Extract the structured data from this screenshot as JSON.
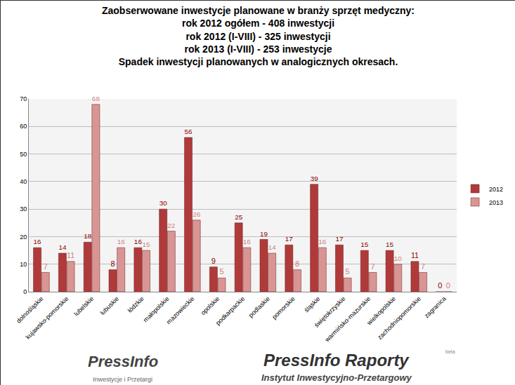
{
  "chart_data": {
    "type": "bar",
    "title": [
      "Zaobserwowane inwestycje planowane w branży sprzęt medyczny:",
      "rok 2012 ogółem - 408 inwestycji",
      "rok 2012 (I-VIII) - 325 inwestycji",
      "rok 2013 (I-VIII) - 253 inwestycje",
      "Spadek inwestycji planowanych w analogicznych okresach."
    ],
    "categories": [
      "dolnośląskie",
      "kujawsko-pomorskie",
      "lubelskie",
      "lubuskie",
      "łódzkie",
      "małopolskie",
      "mazowieckie",
      "opolskie",
      "podkarpackie",
      "podlaskie",
      "pomorskie",
      "śląskie",
      "świętokrzyskie",
      "warmińsko-mazurskie",
      "wielkopolskie",
      "zachodniopomorskie",
      "zagranica"
    ],
    "series": [
      {
        "name": "2012",
        "color": "#b03a3a",
        "values": [
          16,
          14,
          18,
          8,
          16,
          30,
          56,
          9,
          25,
          19,
          17,
          39,
          17,
          15,
          15,
          11,
          0
        ]
      },
      {
        "name": "2013",
        "color": "#d99594",
        "values": [
          7,
          11,
          68,
          16,
          15,
          22,
          26,
          5,
          16,
          14,
          8,
          16,
          5,
          7,
          10,
          7,
          0
        ]
      }
    ],
    "ylim": [
      0,
      70
    ],
    "yticks": [
      0,
      10,
      20,
      30,
      40,
      50,
      60,
      70
    ],
    "grid": true,
    "legend": "right",
    "data_labels": true,
    "annotations": [
      "PressInfo",
      "Inwestycje i Przetargi",
      "PressInfo Raporty",
      "beta",
      "Instytut Inwestycyjno-Przetargowy"
    ]
  }
}
